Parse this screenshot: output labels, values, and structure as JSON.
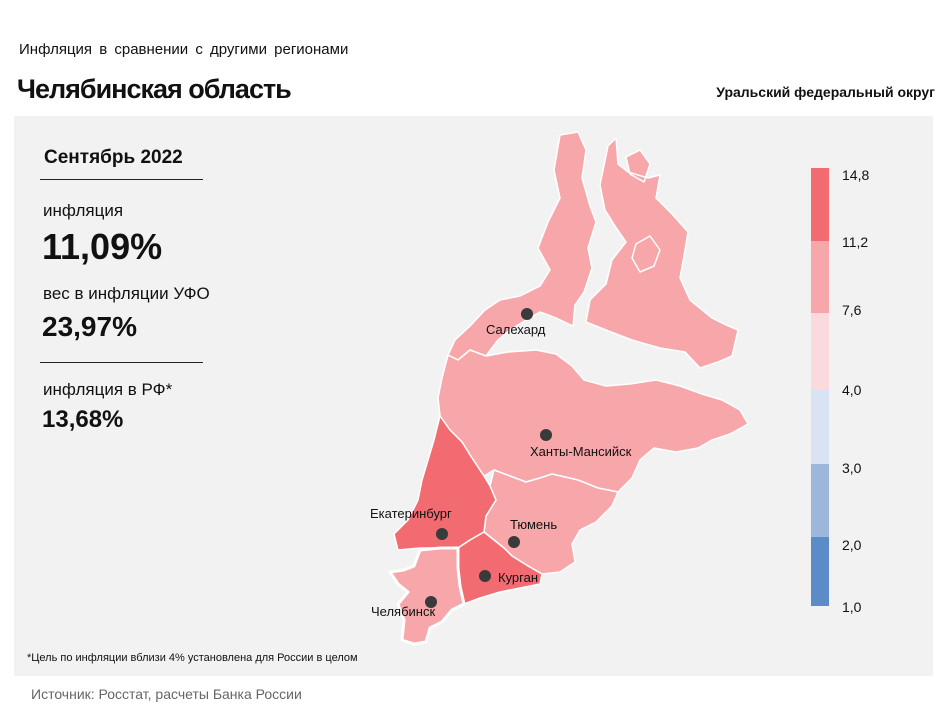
{
  "header": {
    "subtitle": "Инфляция в сравнении с другими регионами",
    "title": "Челябинская область",
    "district": "Уральский федеральный округ"
  },
  "stats": {
    "month": "Сентябрь 2022",
    "inflation_label": "инфляция",
    "inflation_value": "11,09%",
    "weight_label": "вес в инфляции УФО",
    "weight_value": "23,97%",
    "rf_label": "инфляция в РФ*",
    "rf_value": "13,68%"
  },
  "map": {
    "cities": [
      {
        "id": "salekhard",
        "name": "Салехард"
      },
      {
        "id": "khanty",
        "name": "Ханты-Мансийск"
      },
      {
        "id": "ekaterinburg",
        "name": "Екатеринбург"
      },
      {
        "id": "tyumen",
        "name": "Тюмень"
      },
      {
        "id": "kurgan",
        "name": "Курган"
      },
      {
        "id": "chelyabinsk",
        "name": "Челябинск"
      }
    ],
    "region_colors": {
      "yamal": "#f7a6aa",
      "khmao": "#f7a6aa",
      "tyumen": "#f7a6aa",
      "sverdlovsk": "#f26b70",
      "kurgan": "#f26b70",
      "chelyabinsk": "#f7a6aa"
    }
  },
  "legend": {
    "ticks": [
      "14,8",
      "11,2",
      "7,6",
      "4,0",
      "3,0",
      "2,0",
      "1,0"
    ],
    "colors": [
      "#f26b70",
      "#f7a6aa",
      "#fadadd",
      "#dae3f3",
      "#9db7db",
      "#5b8cc8"
    ]
  },
  "footer": {
    "note": "*Цель по инфляции вблизи 4% установлена для России в целом",
    "source": "Источник: Росстат, расчеты Банка России"
  }
}
